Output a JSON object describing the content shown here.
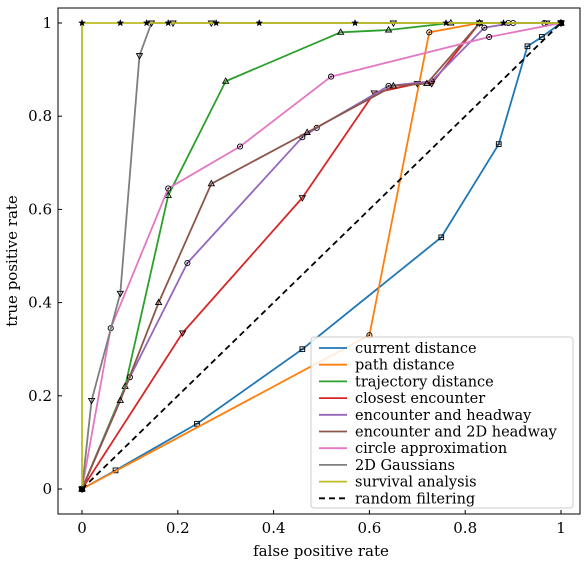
{
  "chart_data": {
    "type": "line",
    "title": "",
    "xlabel": "false positive rate",
    "ylabel": "true positive rate",
    "xlim": [
      0,
      1
    ],
    "ylim": [
      0,
      1
    ],
    "xticks": [
      "0",
      "0.2",
      "0.4",
      "0.6",
      "0.8",
      "1"
    ],
    "yticks": [
      "0",
      "0.2",
      "0.4",
      "0.6",
      "0.8",
      "1"
    ],
    "grid": false,
    "legend_position": "bottom-right",
    "series": [
      {
        "name": "current distance",
        "color": "#1f77b4",
        "marker": "diamond-box",
        "x": [
          0,
          0.07,
          0.24,
          0.46,
          0.75,
          0.87,
          0.93,
          0.96,
          1
        ],
        "y": [
          0,
          0.04,
          0.14,
          0.3,
          0.54,
          0.74,
          0.95,
          0.97,
          1
        ]
      },
      {
        "name": "path distance",
        "color": "#ff7f0e",
        "marker": "circle-dot",
        "x": [
          0,
          0.6,
          0.725,
          0.83,
          0.89,
          0.965,
          1
        ],
        "y": [
          0,
          0.33,
          0.98,
          1,
          1,
          1,
          1
        ]
      },
      {
        "name": "trajectory distance",
        "color": "#2ca02c",
        "marker": "triangle",
        "x": [
          0,
          0.09,
          0.18,
          0.3,
          0.54,
          0.64,
          0.77,
          0.83,
          1
        ],
        "y": [
          0,
          0.22,
          0.63,
          0.875,
          0.98,
          0.985,
          1,
          1,
          1
        ]
      },
      {
        "name": "closest encounter",
        "color": "#d62728",
        "marker": "triangle-down",
        "x": [
          0,
          0.21,
          0.46,
          0.61,
          0.7,
          0.73,
          0.83,
          0.97,
          1
        ],
        "y": [
          0,
          0.335,
          0.625,
          0.85,
          0.87,
          0.87,
          1,
          1,
          1
        ]
      },
      {
        "name": "encounter and headway",
        "color": "#9467bd",
        "marker": "circle-dot",
        "x": [
          0,
          0.1,
          0.22,
          0.46,
          0.49,
          0.64,
          0.73,
          0.84,
          0.9,
          1
        ],
        "y": [
          0,
          0.24,
          0.485,
          0.755,
          0.775,
          0.865,
          0.875,
          0.99,
          1,
          1
        ]
      },
      {
        "name": "encounter and 2D headway",
        "color": "#8c564b",
        "marker": "triangle",
        "x": [
          0,
          0.08,
          0.16,
          0.27,
          0.47,
          0.65,
          0.72,
          0.83,
          1
        ],
        "y": [
          0,
          0.19,
          0.4,
          0.655,
          0.765,
          0.865,
          0.87,
          1,
          1
        ]
      },
      {
        "name": "circle approximation",
        "color": "#e377c2",
        "marker": "circle-dot",
        "x": [
          0,
          0.06,
          0.18,
          0.33,
          0.52,
          0.85,
          1
        ],
        "y": [
          0,
          0.345,
          0.645,
          0.735,
          0.885,
          0.97,
          1
        ]
      },
      {
        "name": "2D Gaussians",
        "color": "#7f7f7f",
        "marker": "triangle-down",
        "x": [
          0,
          0.02,
          0.08,
          0.12,
          0.145,
          0.19,
          0.27,
          0.65,
          1
        ],
        "y": [
          0,
          0.19,
          0.42,
          0.93,
          1,
          1,
          1,
          1,
          1
        ]
      },
      {
        "name": "survival analysis",
        "color": "#bcbd22",
        "marker": "star",
        "x": [
          0,
          0,
          0.08,
          0.135,
          0.18,
          0.28,
          0.37,
          0.57,
          0.76,
          0.88,
          1
        ],
        "y": [
          0,
          1,
          1,
          1,
          1,
          1,
          1,
          1,
          1,
          1,
          1
        ]
      },
      {
        "name": "random filtering",
        "color": "#000000",
        "dash": "6,4",
        "x": [
          0,
          1
        ],
        "y": [
          0,
          1
        ]
      }
    ]
  }
}
